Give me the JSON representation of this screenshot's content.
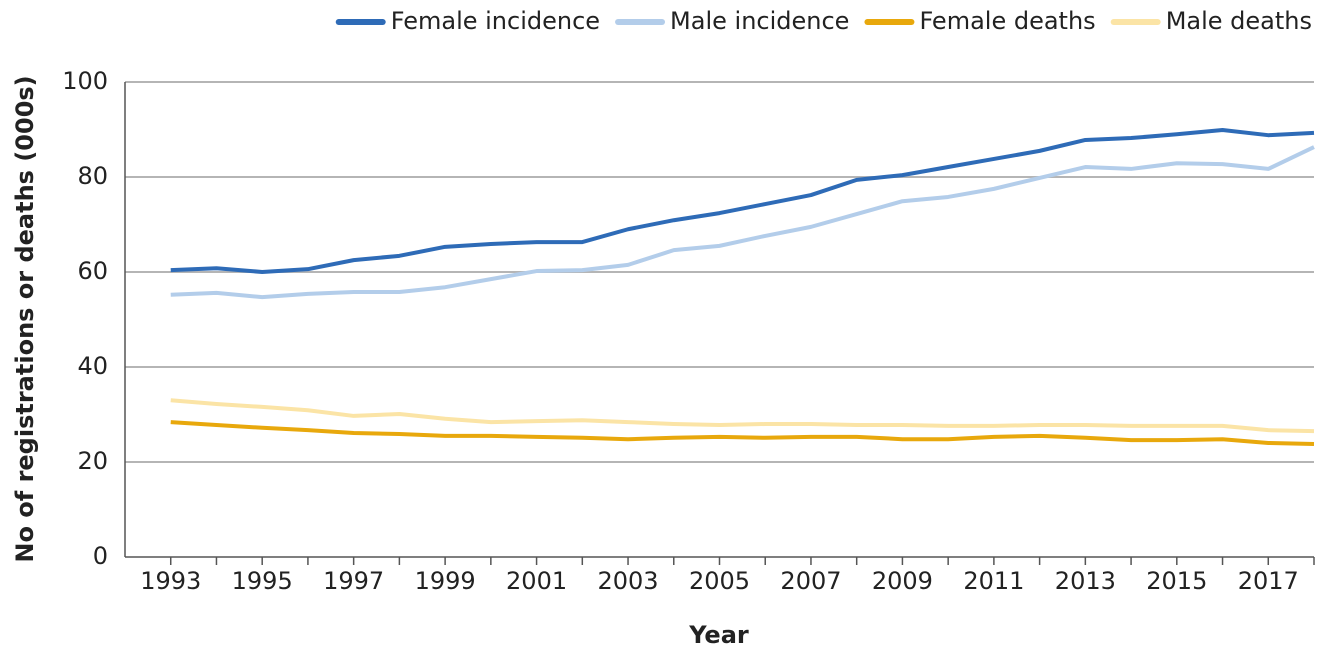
{
  "chart_data": {
    "type": "line",
    "x_label": "Year",
    "y_label": "No of registrations or deaths (000s)",
    "x": [
      1993,
      1994,
      1995,
      1996,
      1997,
      1998,
      1999,
      2000,
      2001,
      2002,
      2003,
      2004,
      2005,
      2006,
      2007,
      2008,
      2009,
      2010,
      2011,
      2012,
      2013,
      2014,
      2015,
      2016,
      2017,
      2018
    ],
    "series": [
      {
        "name": "Female incidence",
        "color": "#2e6bb7",
        "values": [
          60.4,
          60.8,
          60,
          60.6,
          62.5,
          63.4,
          65.3,
          65.9,
          66.3,
          66.3,
          69,
          70.9,
          72.4,
          74.3,
          76.2,
          79.4,
          80.4,
          82.1,
          83.8,
          85.5,
          87.8,
          88.2,
          89,
          89.9,
          88.8,
          89.3
        ]
      },
      {
        "name": "Male incidence",
        "color": "#b3cdea",
        "values": [
          55.2,
          55.6,
          54.7,
          55.4,
          55.8,
          55.8,
          56.8,
          58.5,
          60.2,
          60.4,
          61.5,
          64.6,
          65.5,
          67.6,
          69.5,
          72.2,
          74.9,
          75.8,
          77.5,
          79.8,
          82.1,
          81.7,
          82.9,
          82.7,
          81.7,
          86.3
        ]
      },
      {
        "name": "Female deaths",
        "color": "#e8a80c",
        "values": [
          28.4,
          27.8,
          27.2,
          26.7,
          26.1,
          25.9,
          25.5,
          25.5,
          25.3,
          25.1,
          24.8,
          25.1,
          25.3,
          25.1,
          25.3,
          25.3,
          24.8,
          24.8,
          25.3,
          25.5,
          25.1,
          24.6,
          24.6,
          24.8,
          24,
          23.8
        ]
      },
      {
        "name": "Male deaths",
        "color": "#fbe4a6",
        "values": [
          33,
          32.2,
          31.6,
          30.9,
          29.7,
          30.1,
          29.1,
          28.4,
          28.6,
          28.8,
          28.4,
          28,
          27.8,
          28,
          28,
          27.8,
          27.8,
          27.6,
          27.6,
          27.8,
          27.8,
          27.6,
          27.6,
          27.6,
          26.7,
          26.5
        ]
      }
    ],
    "xlim": [
      1992,
      2018
    ],
    "xticks": [
      1993,
      1995,
      1997,
      1999,
      2001,
      2003,
      2005,
      2007,
      2009,
      2011,
      2013,
      2015,
      2017
    ],
    "ylim": [
      0,
      100
    ],
    "yticks": [
      0,
      20,
      40,
      60,
      80,
      100
    ],
    "grid": true,
    "legend": "top"
  }
}
